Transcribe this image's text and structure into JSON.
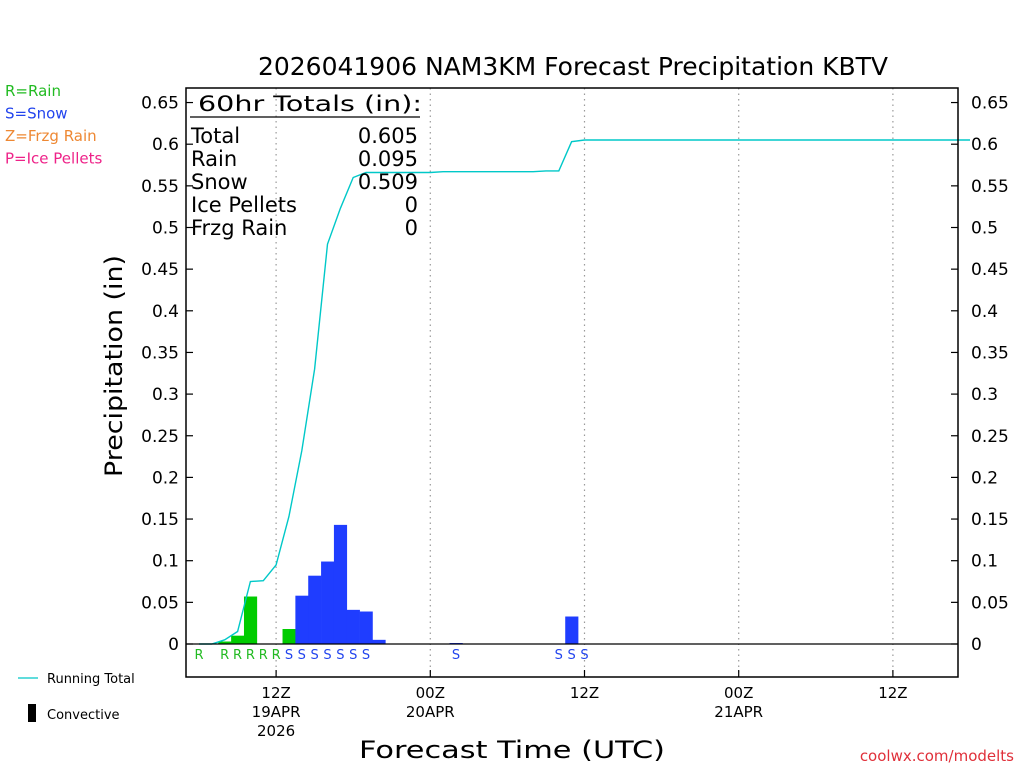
{
  "chart_data": {
    "type": "bar",
    "title": "2026041906 NAM3KM Forecast Precipitation KBTV",
    "ylabel": "Precipitation (in)",
    "xlabel": "Forecast Time (UTC)",
    "ylim": [
      0,
      0.65
    ],
    "yticks": [
      "0",
      "0.05",
      "0.1",
      "0.15",
      "0.2",
      "0.25",
      "0.3",
      "0.35",
      "0.4",
      "0.45",
      "0.5",
      "0.55",
      "0.6",
      "0.65"
    ],
    "x_unit": "forecast hour from 2026041906",
    "xlim": [
      0,
      60
    ],
    "xticks": [
      {
        "hour": 6,
        "lines": [
          "12Z",
          "19APR",
          "2026"
        ]
      },
      {
        "hour": 18,
        "lines": [
          "00Z",
          "20APR"
        ]
      },
      {
        "hour": 30,
        "lines": [
          "12Z"
        ]
      },
      {
        "hour": 42,
        "lines": [
          "00Z",
          "21APR"
        ]
      },
      {
        "hour": 54,
        "lines": [
          "12Z"
        ]
      }
    ],
    "bars": [
      {
        "hour": 2,
        "value": 0.003,
        "type": "rain"
      },
      {
        "hour": 3,
        "value": 0.01,
        "type": "rain"
      },
      {
        "hour": 4,
        "value": 0.057,
        "type": "rain"
      },
      {
        "hour": 7,
        "value": 0.018,
        "type": "rain"
      },
      {
        "hour": 8,
        "value": 0.058,
        "type": "snow"
      },
      {
        "hour": 9,
        "value": 0.082,
        "type": "snow"
      },
      {
        "hour": 10,
        "value": 0.099,
        "type": "snow"
      },
      {
        "hour": 11,
        "value": 0.143,
        "type": "snow"
      },
      {
        "hour": 12,
        "value": 0.041,
        "type": "snow"
      },
      {
        "hour": 13,
        "value": 0.039,
        "type": "snow"
      },
      {
        "hour": 14,
        "value": 0.005,
        "type": "snow"
      },
      {
        "hour": 20,
        "value": 0.001,
        "type": "snow"
      },
      {
        "hour": 29,
        "value": 0.033,
        "type": "snow"
      }
    ],
    "running_total": {
      "name": "Running Total",
      "x": [
        0,
        1,
        2,
        3,
        4,
        5,
        6,
        7,
        8,
        9,
        10,
        11,
        12,
        13,
        14,
        15,
        16,
        17,
        18,
        19,
        20,
        21,
        22,
        23,
        24,
        25,
        26,
        27,
        28,
        29,
        30,
        60
      ],
      "y": [
        0,
        0.0,
        0.005,
        0.015,
        0.075,
        0.076,
        0.095,
        0.153,
        0.232,
        0.33,
        0.48,
        0.523,
        0.56,
        0.566,
        0.566,
        0.566,
        0.566,
        0.566,
        0.566,
        0.567,
        0.567,
        0.567,
        0.567,
        0.567,
        0.567,
        0.567,
        0.567,
        0.568,
        0.568,
        0.603,
        0.605,
        0.605
      ]
    },
    "ptype_row": [
      {
        "hour": 0,
        "label": "R",
        "type": "rain"
      },
      {
        "hour": 2,
        "label": "R",
        "type": "rain"
      },
      {
        "hour": 3,
        "label": "R",
        "type": "rain"
      },
      {
        "hour": 4,
        "label": "R",
        "type": "rain"
      },
      {
        "hour": 5,
        "label": "R",
        "type": "rain"
      },
      {
        "hour": 6,
        "label": "R",
        "type": "rain"
      },
      {
        "hour": 7,
        "label": "S",
        "type": "snow"
      },
      {
        "hour": 8,
        "label": "S",
        "type": "snow"
      },
      {
        "hour": 9,
        "label": "S",
        "type": "snow"
      },
      {
        "hour": 10,
        "label": "S",
        "type": "snow"
      },
      {
        "hour": 11,
        "label": "S",
        "type": "snow"
      },
      {
        "hour": 12,
        "label": "S",
        "type": "snow"
      },
      {
        "hour": 13,
        "label": "S",
        "type": "snow"
      },
      {
        "hour": 20,
        "label": "S",
        "type": "snow"
      },
      {
        "hour": 28,
        "label": "S",
        "type": "snow"
      },
      {
        "hour": 29,
        "label": "S",
        "type": "snow"
      },
      {
        "hour": 30,
        "label": "S",
        "type": "snow"
      }
    ],
    "totals": {
      "heading": "60hr Totals (in):",
      "rows": [
        {
          "label": "Total",
          "value": "0.605"
        },
        {
          "label": "Rain",
          "value": "0.095"
        },
        {
          "label": "Snow",
          "value": "0.509"
        },
        {
          "label": "Ice Pellets",
          "value": "0"
        },
        {
          "label": "Frzg Rain",
          "value": "0"
        }
      ]
    },
    "ptype_legend": [
      {
        "label": "R=Rain",
        "color": "#22bb22"
      },
      {
        "label": "S=Snow",
        "color": "#2244ee"
      },
      {
        "label": "Z=Frzg Rain",
        "color": "#ee8833"
      },
      {
        "label": "P=Ice Pellets",
        "color": "#ee2288"
      }
    ],
    "series_legend": {
      "running_total": "Running Total",
      "convective": "Convective"
    },
    "colors": {
      "rain": "#00cc00",
      "snow": "#1f3dff",
      "line": "#00c8c8",
      "rain_text": "#22bb22",
      "snow_text": "#2244ee",
      "credit": "#e0303a"
    },
    "credit": "coolwx.com/modelts"
  }
}
